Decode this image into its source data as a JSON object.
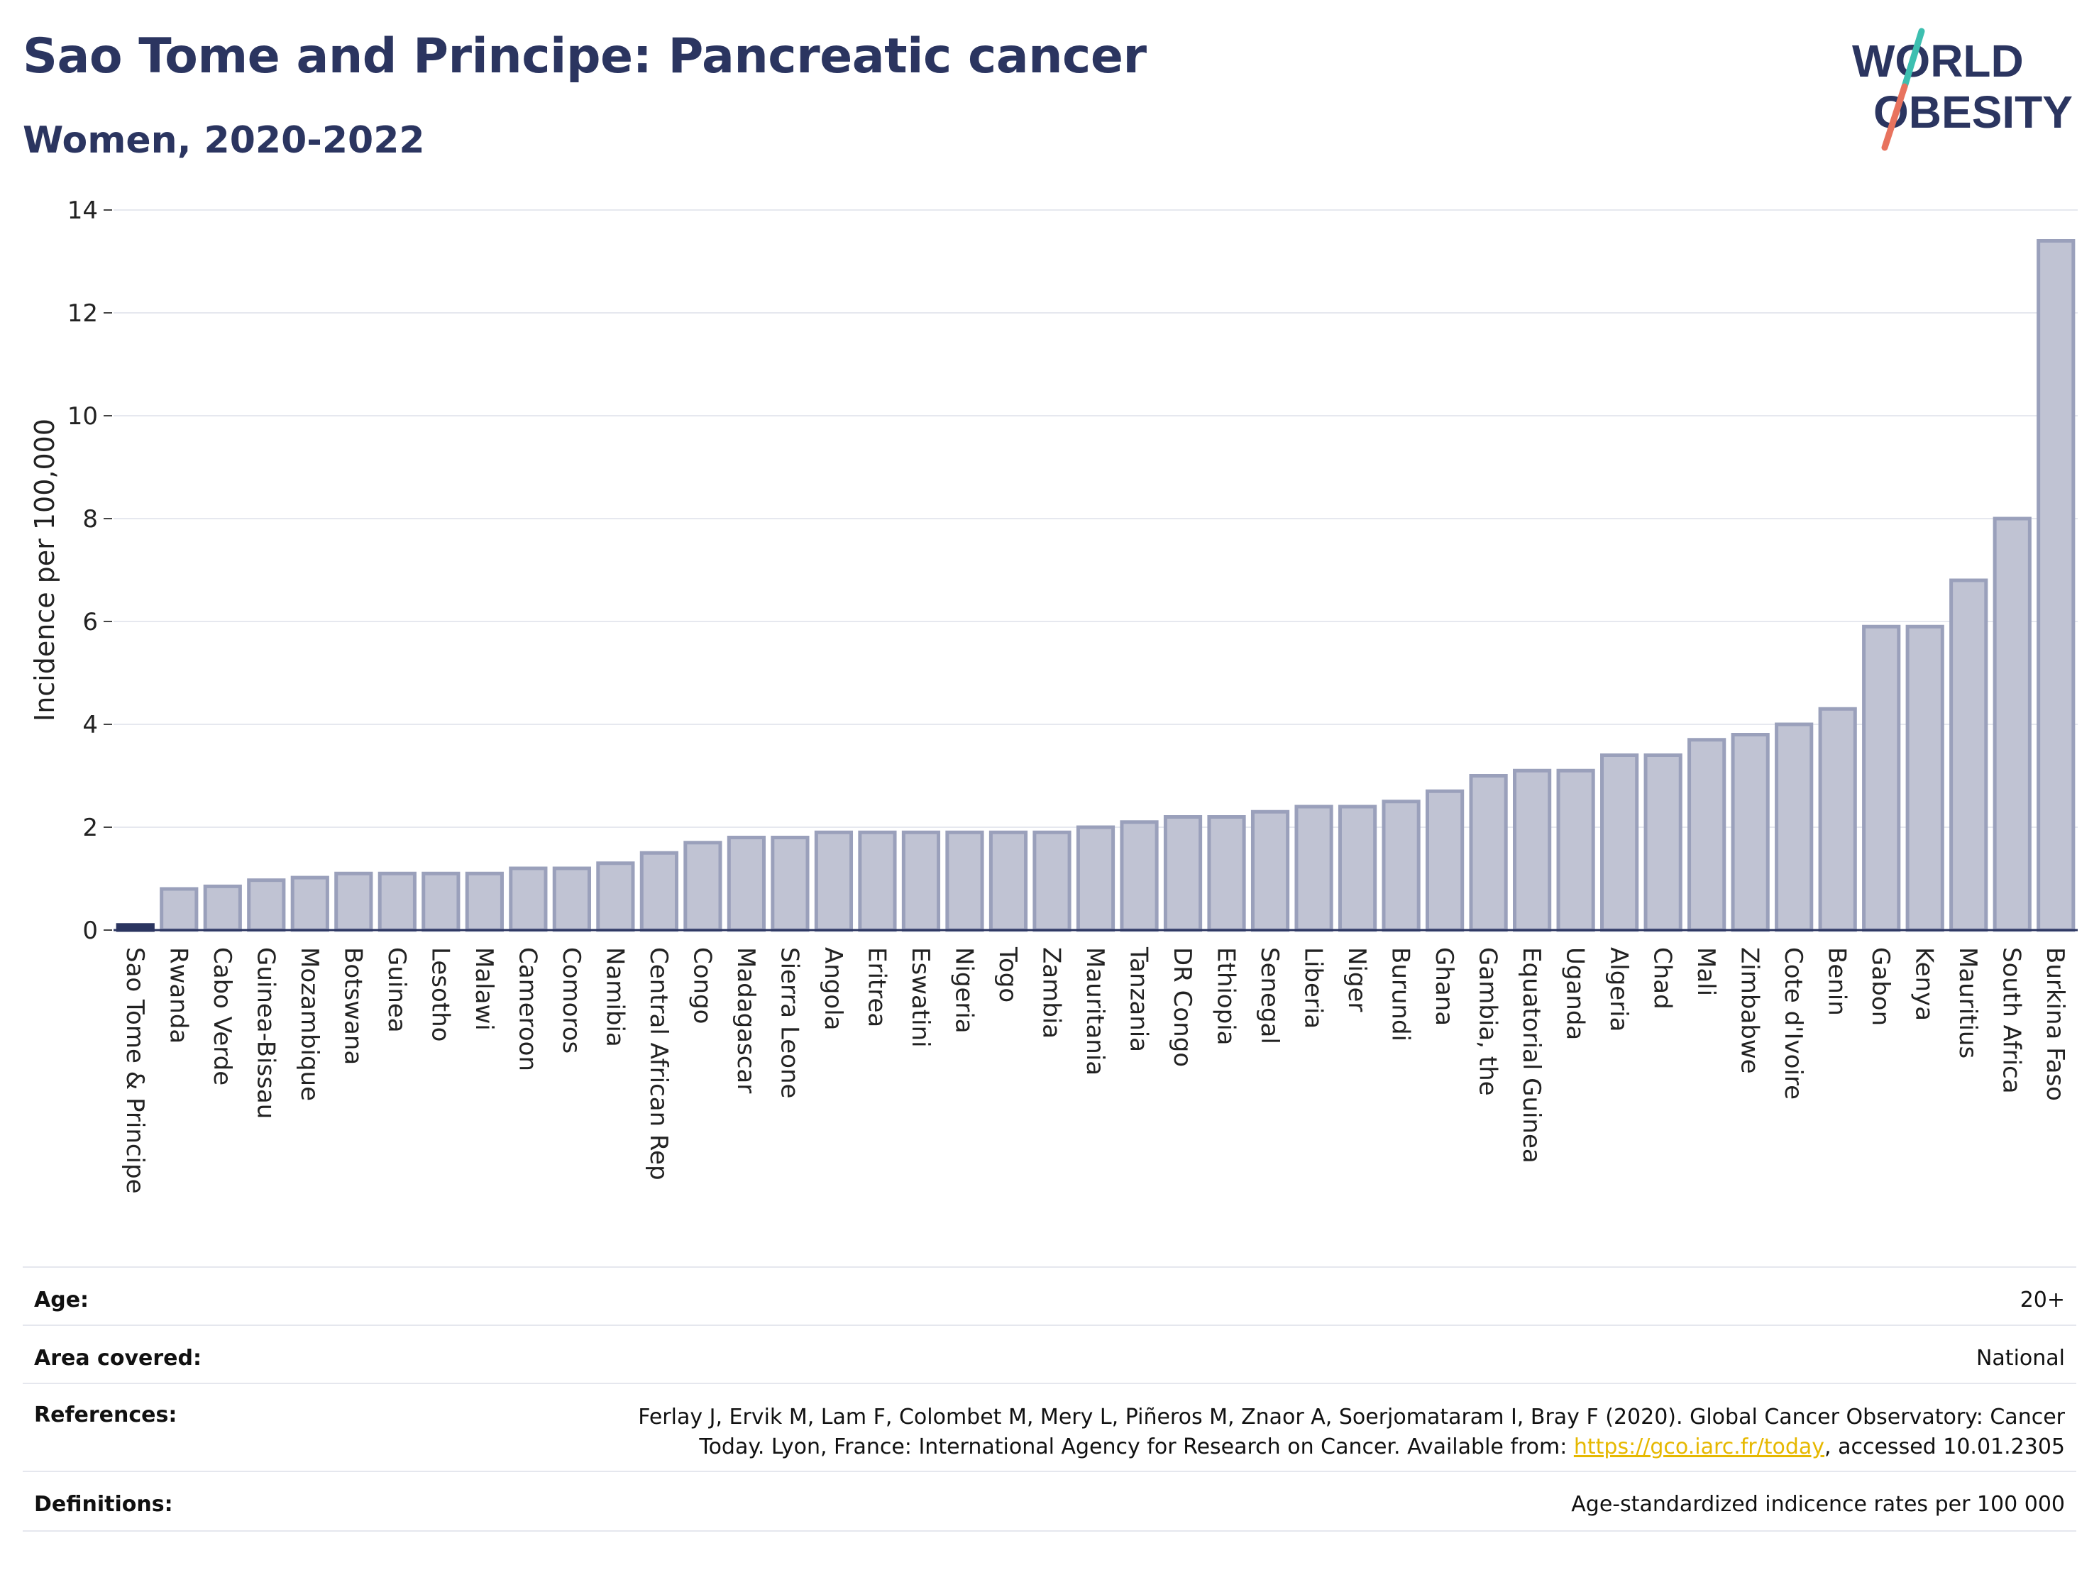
{
  "header": {
    "title": "Sao Tome and Principe: Pancreatic cancer",
    "subtitle": "Women, 2020-2022"
  },
  "logo": {
    "line1": "WORLD",
    "line2": "OBESITY",
    "icon": "slash-logo-icon"
  },
  "colors": {
    "title": "#2b3560",
    "bar_fill": "#c0c3d3",
    "bar_stroke": "#9aa0bb",
    "highlight": "#2b3560",
    "grid": "#e6e8ef",
    "link": "#e6b800"
  },
  "chart_data": {
    "type": "bar",
    "ylabel": "Incidence per 100,000",
    "xlabel": "",
    "ylim": [
      0,
      14
    ],
    "yticks": [
      0,
      2,
      4,
      6,
      8,
      10,
      12,
      14
    ],
    "grid": true,
    "highlight_category": "Sao Tome & Principe",
    "categories": [
      "Sao Tome & Principe",
      "Rwanda",
      "Cabo Verde",
      "Guinea-Bissau",
      "Mozambique",
      "Botswana",
      "Guinea",
      "Lesotho",
      "Malawi",
      "Cameroon",
      "Comoros",
      "Namibia",
      "Central African Rep",
      "Congo",
      "Madagascar",
      "Sierra Leone",
      "Angola",
      "Eritrea",
      "Eswatini",
      "Nigeria",
      "Togo",
      "Zambia",
      "Mauritania",
      "Tanzania",
      "DR Congo",
      "Ethiopia",
      "Senegal",
      "Liberia",
      "Niger",
      "Burundi",
      "Ghana",
      "Gambia, the",
      "Equatorial Guinea",
      "Uganda",
      "Algeria",
      "Chad",
      "Mali",
      "Zimbabwe",
      "Cote d'Ivoire",
      "Benin",
      "Gabon",
      "Kenya",
      "Mauritius",
      "South Africa",
      "Burkina Faso"
    ],
    "values": [
      0.1,
      0.8,
      0.85,
      0.97,
      1.02,
      1.1,
      1.1,
      1.1,
      1.1,
      1.2,
      1.2,
      1.3,
      1.5,
      1.7,
      1.8,
      1.8,
      1.9,
      1.9,
      1.9,
      1.9,
      1.9,
      1.9,
      2.0,
      2.1,
      2.2,
      2.2,
      2.3,
      2.4,
      2.4,
      2.5,
      2.7,
      3.0,
      3.1,
      3.1,
      3.4,
      3.4,
      3.7,
      3.8,
      4.0,
      4.3,
      5.9,
      5.9,
      6.8,
      8.0,
      13.4
    ]
  },
  "info": {
    "age": {
      "label": "Age:",
      "value": "20+"
    },
    "area": {
      "label": "Area covered:",
      "value": "National"
    },
    "references": {
      "label": "References:",
      "line1": "Ferlay J, Ervik M, Lam F, Colombet M, Mery L, Piñeros M, Znaor A, Soerjomataram I, Bray F (2020). Global Cancer Observatory: Cancer",
      "line2_pre": "Today. Lyon, France: International Agency for Research on Cancer. Available from: ",
      "link": "https://gco.iarc.fr/today",
      "line2_post": ", accessed 10.01.2305"
    },
    "definitions": {
      "label": "Definitions:",
      "value": "Age-standardized indicence rates per 100 000"
    }
  }
}
